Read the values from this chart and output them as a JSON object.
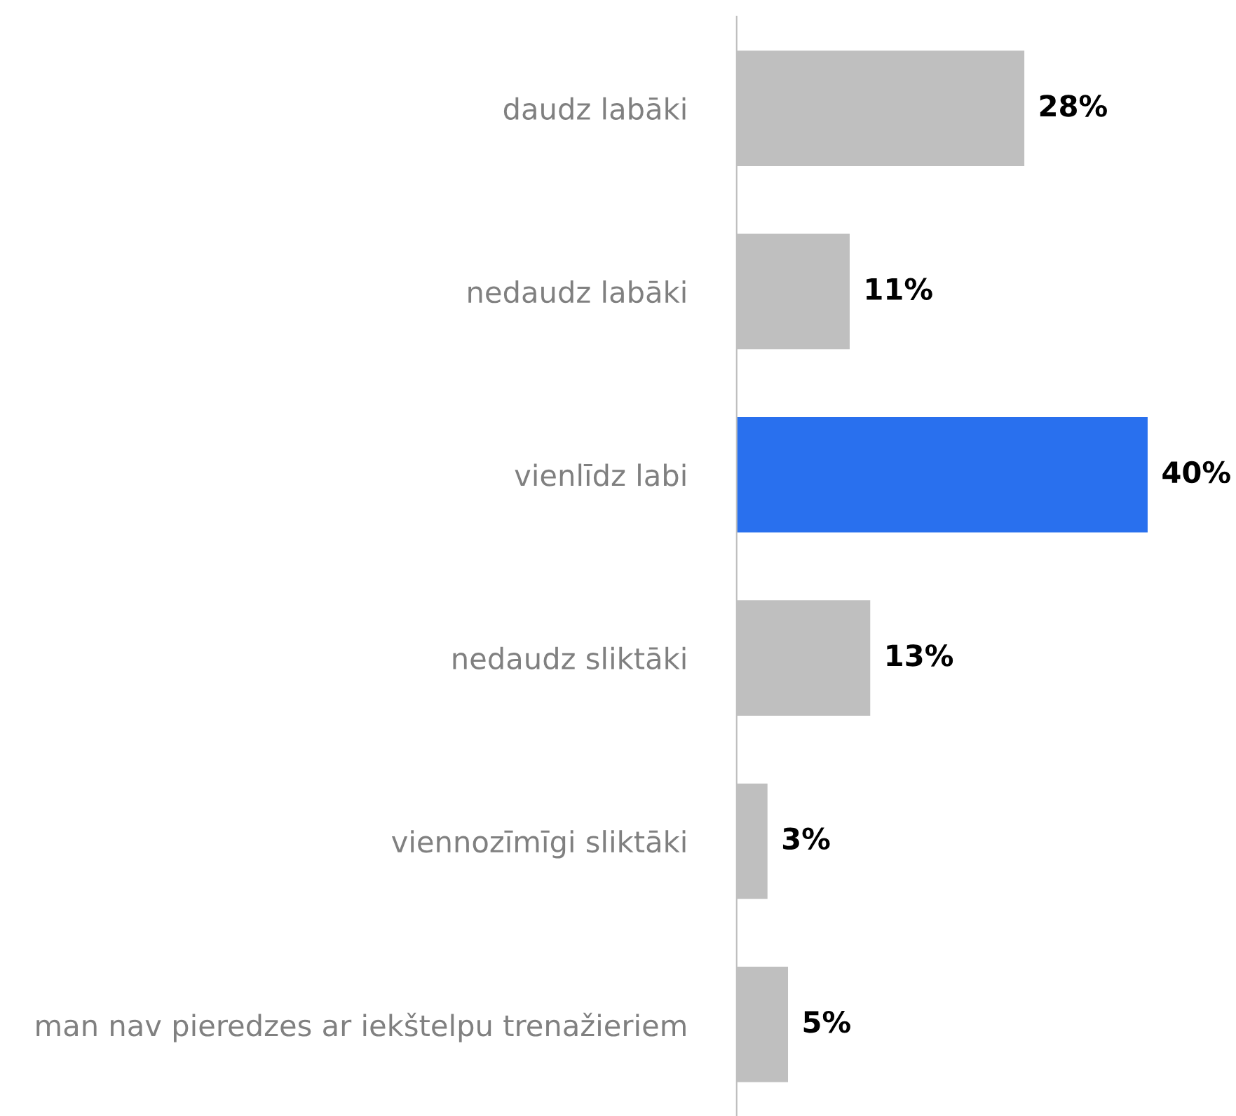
{
  "chart_data": {
    "type": "bar",
    "orientation": "horizontal",
    "categories": [
      "daudz labāki",
      "nedaudz labāki",
      "vienlīdz labi",
      "nedaudz sliktāki",
      "viennozīmīgi sliktāki",
      "man nav pieredzes ar iekštelpu trenažieriem"
    ],
    "values": [
      28,
      11,
      40,
      13,
      3,
      5
    ],
    "colors": [
      "#bfbfbf",
      "#bfbfbf",
      "#2970ee",
      "#bfbfbf",
      "#bfbfbf",
      "#bfbfbf"
    ],
    "value_labels": [
      "28%",
      "11%",
      "40%",
      "13%",
      "3%",
      "5%"
    ],
    "tick_labels": "y",
    "grid": false
  }
}
